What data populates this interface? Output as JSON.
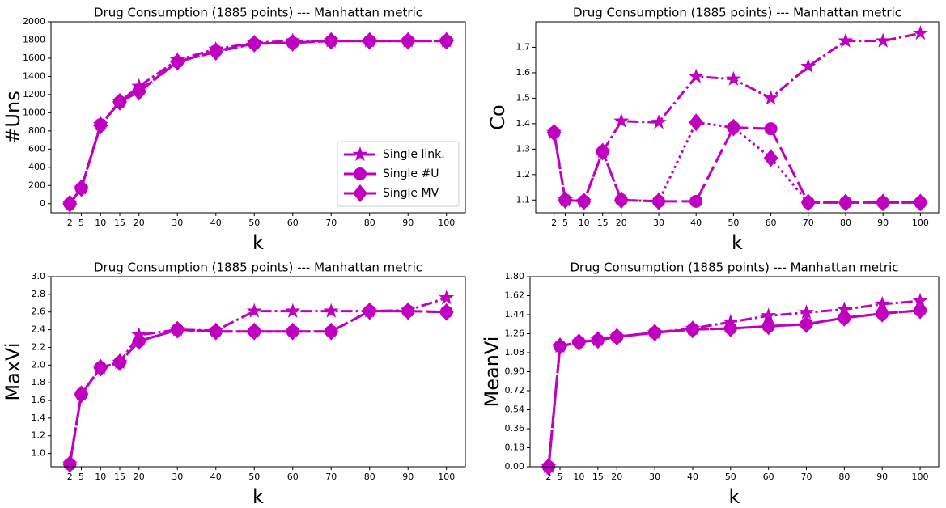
{
  "chart_data": [
    {
      "type": "line",
      "title": "Drug Consumption (1885 points) --- Manhattan metric",
      "x_label": "k",
      "y_label": "#Uns",
      "x": [
        2,
        5,
        10,
        15,
        20,
        30,
        40,
        50,
        60,
        70,
        80,
        90,
        100
      ],
      "xlim": [
        -2.9,
        104.9
      ],
      "xticks": [
        2,
        5,
        10,
        15,
        20,
        30,
        40,
        50,
        60,
        70,
        80,
        90,
        100
      ],
      "ylim": [
        -100,
        2000
      ],
      "yticks": [
        0,
        200,
        400,
        600,
        800,
        1000,
        1200,
        1400,
        1600,
        1800,
        2000
      ],
      "legend": "lower right",
      "series": [
        {
          "name": "Single link.",
          "color": "#bf00bf",
          "marker": "star",
          "linestyle": "dashdot",
          "values": [
            0,
            170,
            870,
            1120,
            1290,
            1580,
            1700,
            1770,
            1790,
            1790,
            1790,
            1790,
            1790
          ]
        },
        {
          "name": "Single #U",
          "color": "#bf00bf",
          "marker": "circle",
          "linestyle": "dashed",
          "values": [
            0,
            170,
            870,
            1120,
            1240,
            1560,
            1680,
            1760,
            1770,
            1790,
            1790,
            1790,
            1790
          ]
        },
        {
          "name": "Single MV",
          "color": "#bf00bf",
          "marker": "diamond",
          "linestyle": "longdashdot",
          "values": [
            0,
            170,
            860,
            1120,
            1230,
            1560,
            1670,
            1760,
            1770,
            1790,
            1790,
            1790,
            1790
          ]
        }
      ]
    },
    {
      "type": "line",
      "title": "Drug Consumption (1885 points) --- Manhattan metric",
      "x_label": "k",
      "y_label": "Co",
      "x": [
        2,
        5,
        10,
        15,
        20,
        30,
        40,
        50,
        60,
        70,
        80,
        90,
        100
      ],
      "xlim": [
        -2.9,
        104.9
      ],
      "xticks": [
        2,
        5,
        10,
        15,
        20,
        30,
        40,
        50,
        60,
        70,
        80,
        90,
        100
      ],
      "ylim": [
        1.05,
        1.8
      ],
      "yticks": [
        1.1,
        1.2,
        1.3,
        1.4,
        1.5,
        1.6,
        1.7
      ],
      "series": [
        {
          "color": "#bf00bf",
          "marker": "star",
          "linestyle": "dashdot",
          "values": [
            1.365,
            1.1,
            1.095,
            1.29,
            1.41,
            1.405,
            1.585,
            1.575,
            1.5,
            1.625,
            1.725,
            1.725,
            1.755
          ]
        },
        {
          "color": "#bf00bf",
          "marker": "circle",
          "linestyle": "dashed",
          "values": [
            1.365,
            1.1,
            1.095,
            1.29,
            1.1,
            1.095,
            1.095,
            1.385,
            1.38,
            1.09,
            1.09,
            1.09,
            1.09
          ]
        },
        {
          "color": "#bf00bf",
          "marker": "diamond",
          "linestyle": "dotted",
          "values": [
            1.365,
            1.1,
            1.095,
            1.29,
            1.1,
            1.095,
            1.405,
            1.385,
            1.265,
            1.09,
            1.09,
            1.09,
            1.09
          ]
        }
      ]
    },
    {
      "type": "line",
      "title": "Drug Consumption (1885 points) --- Manhattan metric",
      "x_label": "k",
      "y_label": "MaxVi",
      "x": [
        2,
        5,
        10,
        15,
        20,
        30,
        40,
        50,
        60,
        70,
        80,
        90,
        100
      ],
      "xlim": [
        -2.9,
        104.9
      ],
      "xticks": [
        2,
        5,
        10,
        15,
        20,
        30,
        40,
        50,
        60,
        70,
        80,
        90,
        100
      ],
      "ylim": [
        0.85,
        3.0
      ],
      "yticks": [
        {
          "value": 1.0,
          "label": "1.0"
        },
        1.2,
        1.4,
        1.6,
        1.8,
        {
          "value": 2.0,
          "label": "2.0"
        },
        2.2,
        2.4,
        2.6,
        2.8,
        {
          "value": 3.0,
          "label": "3.0"
        }
      ],
      "series": [
        {
          "color": "#bf00bf",
          "marker": "star",
          "linestyle": "dashdot",
          "values": [
            0.88,
            1.67,
            1.97,
            2.03,
            2.34,
            2.4,
            2.39,
            2.61,
            2.61,
            2.61,
            2.61,
            2.62,
            2.76
          ]
        },
        {
          "color": "#bf00bf",
          "marker": "circle",
          "linestyle": "dashed",
          "values": [
            0.88,
            1.67,
            1.97,
            2.03,
            2.27,
            2.4,
            2.38,
            2.38,
            2.38,
            2.38,
            2.61,
            2.61,
            2.6
          ]
        },
        {
          "color": "#bf00bf",
          "marker": "diamond",
          "linestyle": "longdashdot",
          "values": [
            0.88,
            1.67,
            1.97,
            2.03,
            2.27,
            2.4,
            2.38,
            2.38,
            2.38,
            2.38,
            2.61,
            2.61,
            2.6
          ]
        }
      ]
    },
    {
      "type": "line",
      "title": "Drug Consumption (1885 points) --- Manhattan metric",
      "x_label": "k",
      "y_label": "MeanVi",
      "x": [
        2,
        5,
        10,
        15,
        20,
        30,
        40,
        50,
        60,
        70,
        80,
        90,
        100
      ],
      "xlim": [
        -2.9,
        104.9
      ],
      "xticks": [
        2,
        5,
        10,
        15,
        20,
        30,
        40,
        50,
        60,
        70,
        80,
        90,
        100
      ],
      "ylim": [
        0,
        1.8
      ],
      "yticks": [
        {
          "value": 0,
          "label": "0.00"
        },
        0.18,
        0.36,
        0.54,
        0.72,
        {
          "value": 0.9,
          "label": "0.90"
        },
        1.08,
        1.26,
        1.44,
        1.62,
        {
          "value": 1.8,
          "label": "1.80"
        }
      ],
      "series": [
        {
          "color": "#bf00bf",
          "marker": "star",
          "linestyle": "dashdot",
          "values": [
            0,
            1.14,
            1.18,
            1.2,
            1.23,
            1.27,
            1.31,
            1.37,
            1.43,
            1.46,
            1.49,
            1.54,
            1.57
          ]
        },
        {
          "color": "#bf00bf",
          "marker": "circle",
          "linestyle": "dashed",
          "values": [
            0,
            1.14,
            1.18,
            1.2,
            1.23,
            1.27,
            1.3,
            1.31,
            1.33,
            1.35,
            1.41,
            1.45,
            1.48
          ]
        },
        {
          "color": "#bf00bf",
          "marker": "diamond",
          "linestyle": "longdashdot",
          "values": [
            0,
            1.14,
            1.18,
            1.2,
            1.23,
            1.27,
            1.3,
            1.31,
            1.33,
            1.35,
            1.41,
            1.45,
            1.48
          ]
        }
      ]
    }
  ]
}
